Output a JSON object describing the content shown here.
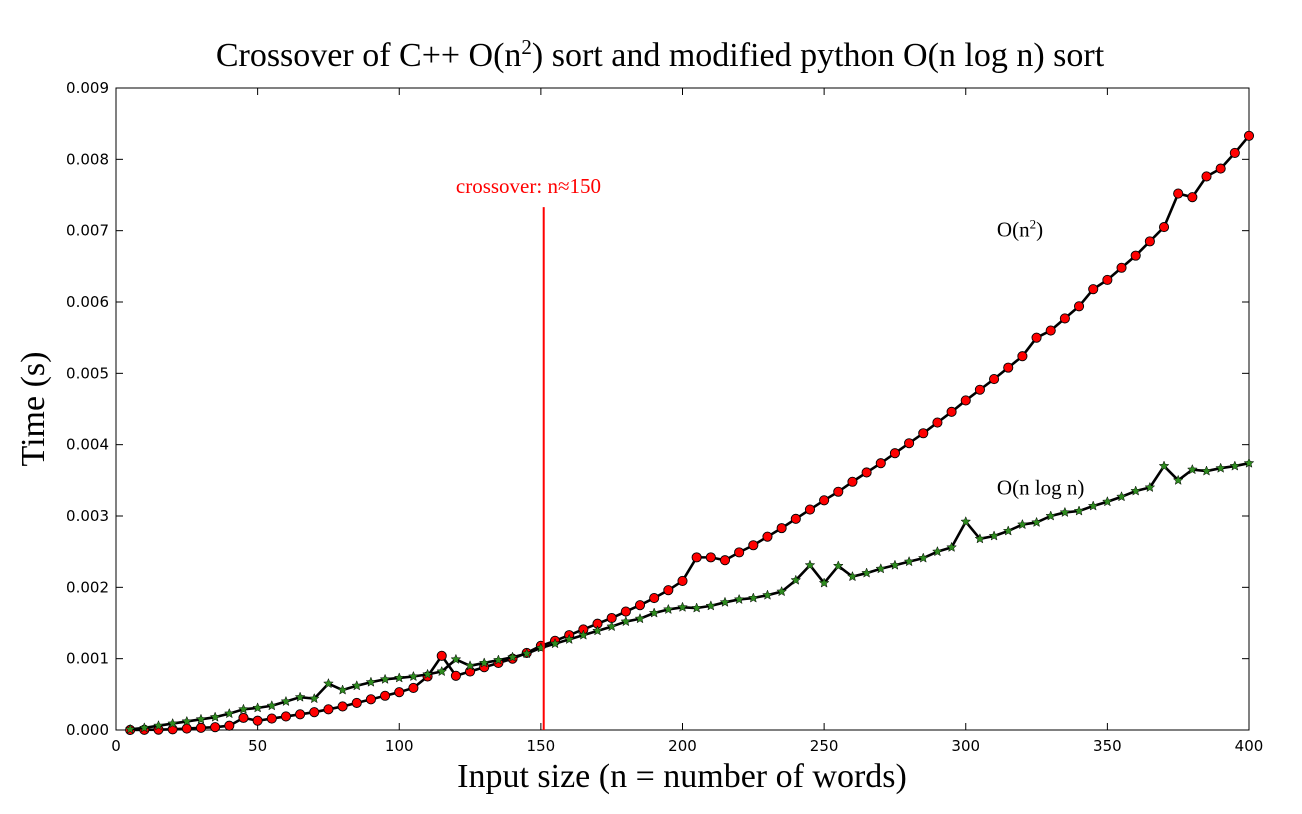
{
  "chart_data": {
    "type": "line",
    "title_main": "Crossover of C++ O(n",
    "title_sup": "2",
    "title_tail": ") sort and modified python O(n log n) sort",
    "xlabel": "Input size (n = number of words)",
    "ylabel": "Time (s)",
    "xlim": [
      0,
      400
    ],
    "ylim": [
      0,
      0.009
    ],
    "x_ticks": [
      0,
      50,
      100,
      150,
      200,
      250,
      300,
      350,
      400
    ],
    "x_tick_labels": [
      "0",
      "50",
      "100",
      "150",
      "200",
      "250",
      "300",
      "350",
      "400"
    ],
    "y_ticks": [
      0,
      0.001,
      0.002,
      0.003,
      0.004,
      0.005,
      0.006,
      0.007,
      0.008,
      0.009
    ],
    "y_tick_labels": [
      "0.000",
      "0.001",
      "0.002",
      "0.003",
      "0.004",
      "0.005",
      "0.006",
      "0.007",
      "0.008",
      "0.009"
    ],
    "grid": false,
    "x": [
      5,
      10,
      15,
      20,
      25,
      30,
      35,
      40,
      45,
      50,
      55,
      60,
      65,
      70,
      75,
      80,
      85,
      90,
      95,
      100,
      105,
      110,
      115,
      120,
      125,
      130,
      135,
      140,
      145,
      150,
      155,
      160,
      165,
      170,
      175,
      180,
      185,
      190,
      195,
      200,
      205,
      210,
      215,
      220,
      225,
      230,
      235,
      240,
      245,
      250,
      255,
      260,
      265,
      270,
      275,
      280,
      285,
      290,
      295,
      300,
      305,
      310,
      315,
      320,
      325,
      330,
      335,
      340,
      345,
      350,
      355,
      360,
      365,
      370,
      375,
      380,
      385,
      390,
      395,
      400
    ],
    "series": [
      {
        "name": "O(n²)",
        "marker": "circle",
        "marker_color": "#ff0000",
        "values": [
          5e-07,
          2e-06,
          5e-06,
          1e-05,
          2e-05,
          3e-05,
          4e-05,
          6e-05,
          0.00017,
          0.00013,
          0.00016,
          0.00019,
          0.00022,
          0.00025,
          0.00029,
          0.00033,
          0.00038,
          0.00043,
          0.00048,
          0.00053,
          0.00059,
          0.00075,
          0.00104,
          0.00076,
          0.00082,
          0.00088,
          0.00094,
          0.001,
          0.00108,
          0.00118,
          0.00125,
          0.00133,
          0.00141,
          0.00149,
          0.00157,
          0.00166,
          0.00175,
          0.00185,
          0.00196,
          0.00209,
          0.00242,
          0.00242,
          0.00238,
          0.00249,
          0.00259,
          0.00271,
          0.00283,
          0.00296,
          0.00309,
          0.00322,
          0.00334,
          0.00348,
          0.00361,
          0.00374,
          0.00388,
          0.00402,
          0.00416,
          0.00431,
          0.00446,
          0.00462,
          0.00477,
          0.00492,
          0.00508,
          0.00524,
          0.0055,
          0.0056,
          0.00577,
          0.00594,
          0.00618,
          0.00631,
          0.00648,
          0.00665,
          0.00685,
          0.00705,
          0.00752,
          0.00747,
          0.00776,
          0.00787,
          0.00809,
          0.00833
        ]
      },
      {
        "name": "O(n log n)",
        "marker": "star",
        "marker_color": "#2e8b1f",
        "values": [
          1e-05,
          3e-05,
          6e-05,
          9e-05,
          0.00012,
          0.00015,
          0.00018,
          0.00023,
          0.00029,
          0.00031,
          0.00034,
          0.0004,
          0.00046,
          0.00044,
          0.00065,
          0.00056,
          0.00062,
          0.00067,
          0.00071,
          0.00073,
          0.00075,
          0.00078,
          0.00082,
          0.00099,
          0.0009,
          0.00094,
          0.00098,
          0.00102,
          0.00107,
          0.00115,
          0.00121,
          0.00127,
          0.00133,
          0.00139,
          0.00145,
          0.00152,
          0.00156,
          0.00164,
          0.00169,
          0.00172,
          0.00171,
          0.00174,
          0.00179,
          0.00183,
          0.00185,
          0.00189,
          0.00194,
          0.0021,
          0.00231,
          0.00206,
          0.0023,
          0.00215,
          0.0022,
          0.00226,
          0.00231,
          0.00236,
          0.00241,
          0.0025,
          0.00256,
          0.00292,
          0.00268,
          0.00272,
          0.00279,
          0.00288,
          0.00291,
          0.003,
          0.00305,
          0.00307,
          0.00314,
          0.0032,
          0.00327,
          0.00335,
          0.0034,
          0.0037,
          0.0035,
          0.00365,
          0.00363,
          0.00367,
          0.0037,
          0.00374
        ]
      }
    ],
    "annotations": [
      {
        "kind": "vline",
        "x": 151,
        "y_top": 0.00733,
        "color": "#ff0000",
        "text": "crossover: n≈150",
        "text_x": 120,
        "text_y": 0.00753
      },
      {
        "kind": "label",
        "text_main": "O(n",
        "text_sup": "2",
        "text_tail": ")",
        "x": 311,
        "y": 0.00692,
        "color": "#000000"
      },
      {
        "kind": "label",
        "text_main": "O(n log n)",
        "text_sup": "",
        "text_tail": "",
        "x": 311,
        "y": 0.0033,
        "color": "#000000"
      }
    ]
  }
}
